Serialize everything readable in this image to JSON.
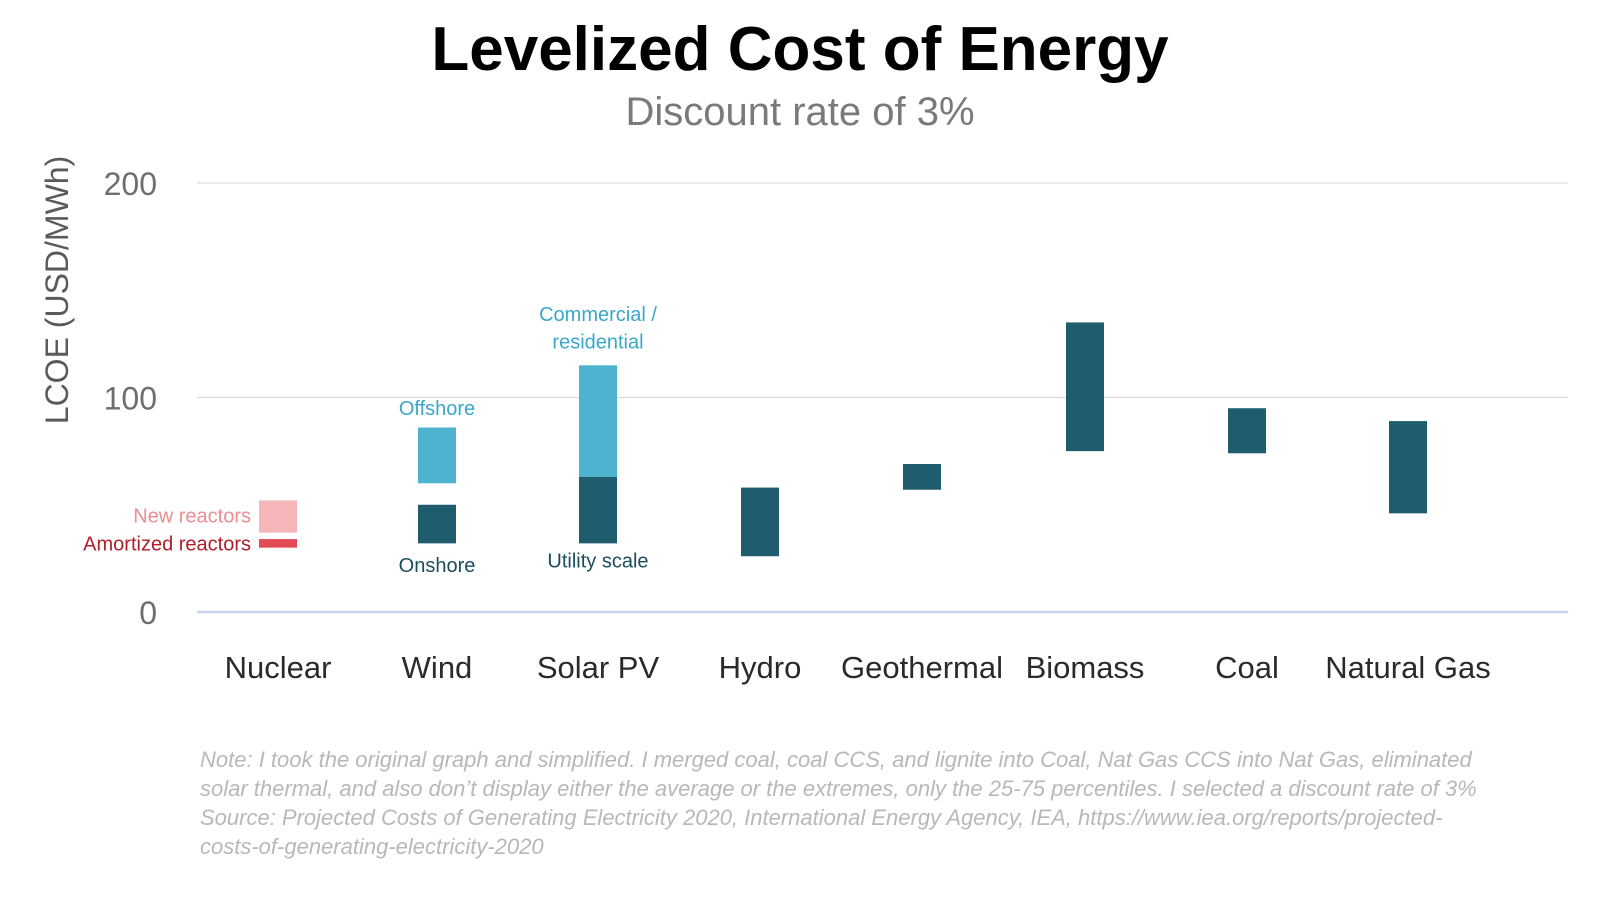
{
  "chart_data": {
    "type": "bar",
    "title": "Levelized Cost of Energy",
    "subtitle": "Discount rate of 3%",
    "ylabel": "LCOE (USD/MWh)",
    "xlabel": "",
    "ylim": [
      0,
      200
    ],
    "yticks": [
      0,
      100,
      200
    ],
    "grid": true,
    "categories": [
      "Nuclear",
      "Wind",
      "Solar PV",
      "Hydro",
      "Geothermal",
      "Biomass",
      "Coal",
      "Natural Gas"
    ],
    "colors": {
      "main": "#1f5c6e",
      "light_blue": "#4db3cf",
      "new_reactors": "#f6b5b8",
      "amortized_reactors": "#e24a55",
      "annotation_blue": "#3aa7c9",
      "annotation_dark": "#1b4d5e",
      "annotation_pink": "#ee8c92",
      "annotation_red": "#b01e2a",
      "grid": "#dcdcdc",
      "baseline": "#c8d4f0"
    },
    "ranges": [
      {
        "category": "Nuclear",
        "segment": "New reactors",
        "low": 37,
        "high": 52,
        "color": "new_reactors"
      },
      {
        "category": "Nuclear",
        "segment": "Amortized reactors",
        "low": 30,
        "high": 34,
        "color": "amortized_reactors"
      },
      {
        "category": "Wind",
        "segment": "Offshore",
        "low": 60,
        "high": 86,
        "color": "light_blue"
      },
      {
        "category": "Wind",
        "segment": "Onshore",
        "low": 32,
        "high": 50,
        "color": "main"
      },
      {
        "category": "Solar PV",
        "segment": "Commercial / residential",
        "low": 63,
        "high": 115,
        "color": "light_blue"
      },
      {
        "category": "Solar PV",
        "segment": "Utility scale",
        "low": 32,
        "high": 63,
        "color": "main"
      },
      {
        "category": "Hydro",
        "segment": "",
        "low": 26,
        "high": 58,
        "color": "main"
      },
      {
        "category": "Geothermal",
        "segment": "",
        "low": 57,
        "high": 69,
        "color": "main"
      },
      {
        "category": "Biomass",
        "segment": "",
        "low": 75,
        "high": 135,
        "color": "main"
      },
      {
        "category": "Coal",
        "segment": "",
        "low": 74,
        "high": 95,
        "color": "main"
      },
      {
        "category": "Natural Gas",
        "segment": "",
        "low": 46,
        "high": 89,
        "color": "main"
      }
    ],
    "annotations": [
      {
        "text": "New reactors",
        "category": "Nuclear",
        "at": 45,
        "side": "left",
        "color": "annotation_pink"
      },
      {
        "text": "Amortized reactors",
        "category": "Nuclear",
        "at": 32,
        "side": "left",
        "color": "annotation_red"
      },
      {
        "text": "Offshore",
        "category": "Wind",
        "at": 95,
        "side": "above",
        "color": "annotation_blue"
      },
      {
        "text": "Onshore",
        "category": "Wind",
        "at": 22,
        "side": "below",
        "color": "annotation_dark"
      },
      {
        "text": "Commercial /",
        "category": "Solar PV",
        "at": 139,
        "side": "above",
        "color": "annotation_blue"
      },
      {
        "text": "residential",
        "category": "Solar PV",
        "at": 126,
        "side": "above",
        "color": "annotation_blue"
      },
      {
        "text": "Utility scale",
        "category": "Solar PV",
        "at": 24,
        "side": "below",
        "color": "annotation_dark"
      }
    ]
  },
  "note": {
    "lines": [
      "Note: I took the original graph and simplified. I merged coal, coal CCS, and lignite into Coal, Nat Gas CCS into Nat Gas, eliminated",
      "solar thermal, and also don’t display either the average or the extremes, only the 25-75 percentiles. I selected a discount rate of 3%",
      "Source: Projected Costs of Generating Electricity 2020, International Energy Agency, IEA, https://www.iea.org/reports/projected-",
      "costs-of-generating-electricity-2020"
    ]
  }
}
